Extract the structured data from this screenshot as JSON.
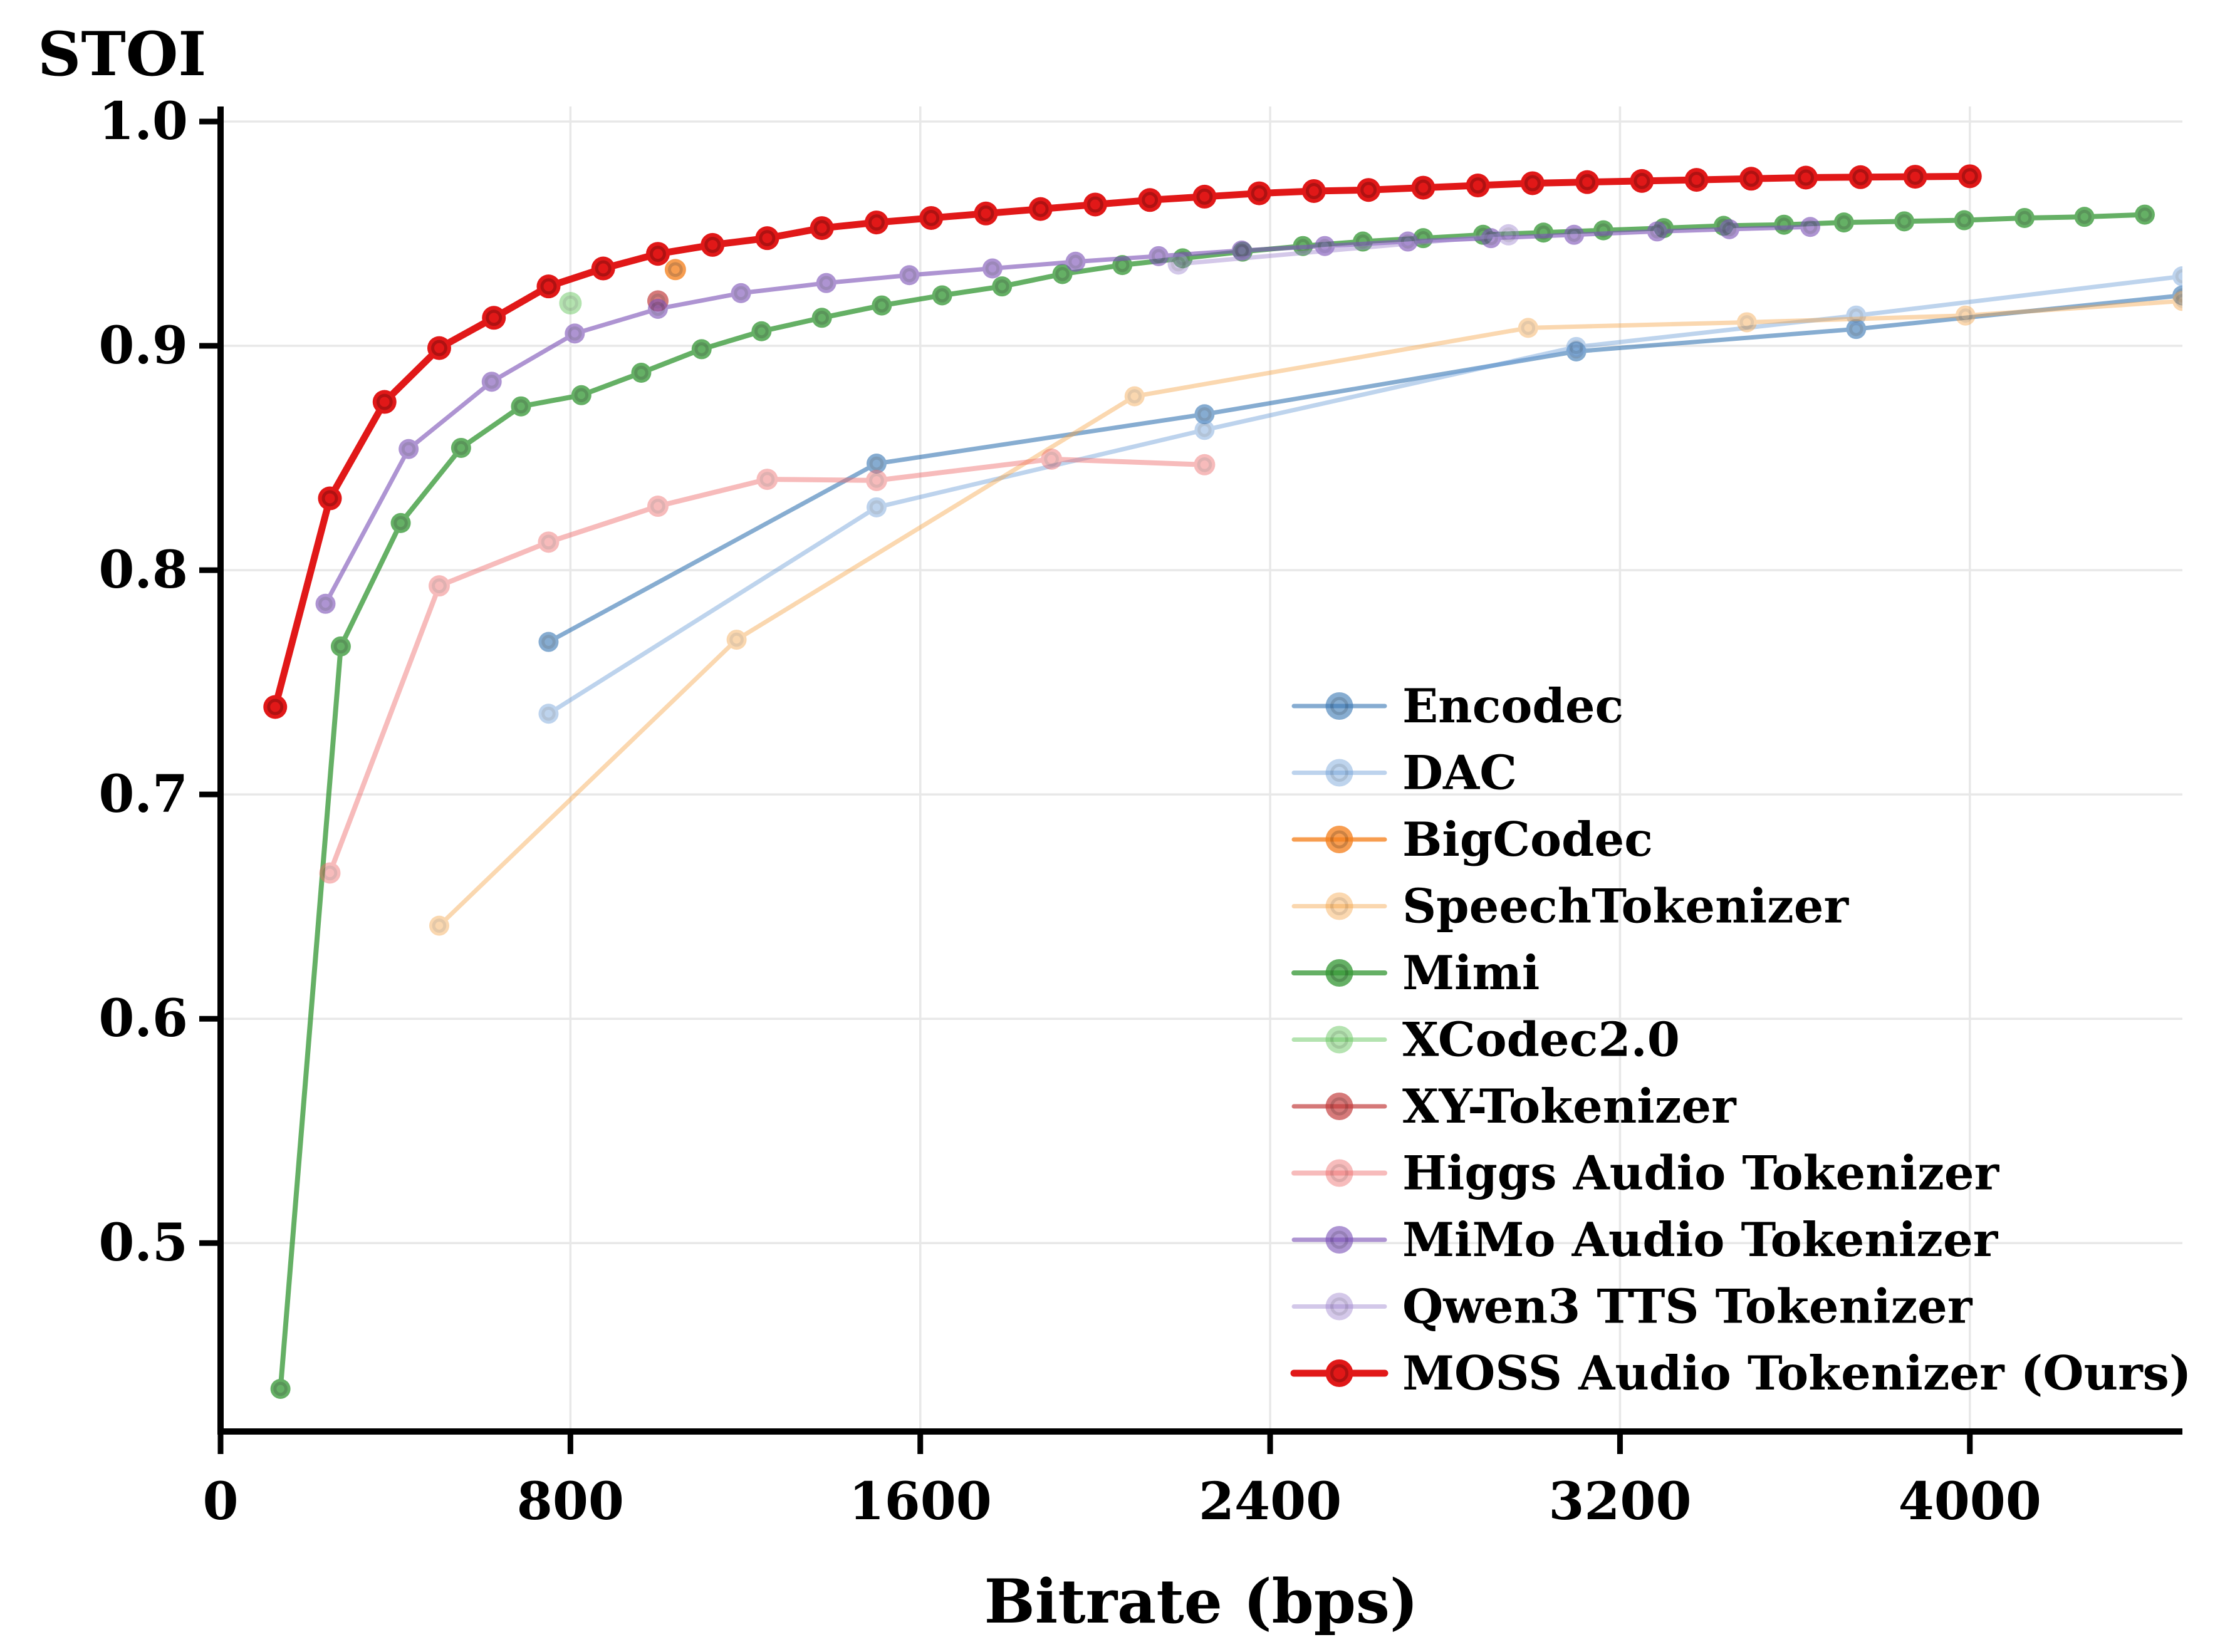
{
  "chart_data": {
    "type": "line",
    "title": "STOI",
    "xlabel": "Bitrate (bps)",
    "ylabel": "STOI",
    "xlim": [
      0,
      4486
    ],
    "ylim": [
      0.416,
      1.0067
    ],
    "xticks": [
      0,
      800,
      1600,
      2400,
      3200,
      4000
    ],
    "yticks": [
      0.5,
      0.6,
      0.7,
      0.8,
      0.9,
      1.0
    ],
    "grid": true,
    "grid_color": "#e8e8e8",
    "legend_position": "center-right",
    "series": [
      {
        "name": "Encodec",
        "color": "#3d7ab5",
        "opacity": 0.62,
        "line_width": 7,
        "marker_size": 16,
        "points": [
          [
            750,
            0.768
          ],
          [
            1500,
            0.8475
          ],
          [
            2250,
            0.8695
          ],
          [
            3100,
            0.8975
          ],
          [
            3740,
            0.9075
          ],
          [
            4486,
            0.9225
          ]
        ]
      },
      {
        "name": "DAC",
        "color": "#6f9fd8",
        "opacity": 0.45,
        "line_width": 7,
        "marker_size": 16,
        "points": [
          [
            750,
            0.736
          ],
          [
            1500,
            0.828
          ],
          [
            2250,
            0.8625
          ],
          [
            3100,
            0.8995
          ],
          [
            3740,
            0.9135
          ],
          [
            4486,
            0.931
          ]
        ]
      },
      {
        "name": "BigCodec",
        "color": "#f58220",
        "opacity": 0.78,
        "line_width": 7,
        "marker_size": 17,
        "points": [
          [
            1040,
            0.934
          ]
        ]
      },
      {
        "name": "SpeechTokenizer",
        "color": "#f5a142",
        "opacity": 0.42,
        "line_width": 7,
        "marker_size": 16,
        "points": [
          [
            500,
            0.6415
          ],
          [
            1180,
            0.769
          ],
          [
            2090,
            0.8775
          ],
          [
            2990,
            0.908
          ],
          [
            3490,
            0.9105
          ],
          [
            3990,
            0.9135
          ],
          [
            4486,
            0.92
          ]
        ]
      },
      {
        "name": "Mimi",
        "color": "#3a9a3a",
        "opacity": 0.78,
        "line_width": 8,
        "marker_size": 16,
        "points": [
          [
            137,
            0.435
          ],
          [
            275,
            0.766
          ],
          [
            412,
            0.821
          ],
          [
            550,
            0.8545
          ],
          [
            687,
            0.873
          ],
          [
            825,
            0.878
          ],
          [
            962,
            0.888
          ],
          [
            1100,
            0.8985
          ],
          [
            1237,
            0.9065
          ],
          [
            1375,
            0.9125
          ],
          [
            1512,
            0.918
          ],
          [
            1650,
            0.9225
          ],
          [
            1787,
            0.9265
          ],
          [
            1925,
            0.932
          ],
          [
            2062,
            0.936
          ],
          [
            2200,
            0.939
          ],
          [
            2337,
            0.942
          ],
          [
            2475,
            0.9445
          ],
          [
            2612,
            0.9465
          ],
          [
            2750,
            0.948
          ],
          [
            2887,
            0.9495
          ],
          [
            3025,
            0.9505
          ],
          [
            3162,
            0.9515
          ],
          [
            3300,
            0.9525
          ],
          [
            3437,
            0.9535
          ],
          [
            3575,
            0.954
          ],
          [
            3712,
            0.955
          ],
          [
            3850,
            0.9555
          ],
          [
            3987,
            0.956
          ],
          [
            4125,
            0.957
          ],
          [
            4262,
            0.9575
          ],
          [
            4400,
            0.9585
          ]
        ]
      },
      {
        "name": "XCodec2.0",
        "color": "#6cc863",
        "opacity": 0.5,
        "line_width": 7,
        "marker_size": 18,
        "points": [
          [
            800,
            0.919
          ]
        ]
      },
      {
        "name": "XY-Tokenizer",
        "color": "#c23b3b",
        "opacity": 0.68,
        "line_width": 7,
        "marker_size": 17,
        "points": [
          [
            1000,
            0.92
          ]
        ]
      },
      {
        "name": "Higgs Audio Tokenizer",
        "color": "#ee6b6b",
        "opacity": 0.45,
        "line_width": 8,
        "marker_size": 17,
        "points": [
          [
            250,
            0.665
          ],
          [
            500,
            0.793
          ],
          [
            750,
            0.8125
          ],
          [
            1000,
            0.8285
          ],
          [
            1250,
            0.8405
          ],
          [
            1500,
            0.84
          ],
          [
            1900,
            0.8495
          ],
          [
            2250,
            0.847
          ]
        ]
      },
      {
        "name": "MiMo Audio Tokenizer",
        "color": "#7d54b8",
        "opacity": 0.62,
        "line_width": 7,
        "marker_size": 16,
        "points": [
          [
            240,
            0.785
          ],
          [
            430,
            0.854
          ],
          [
            620,
            0.884
          ],
          [
            810,
            0.9055
          ],
          [
            1000,
            0.9165
          ],
          [
            1190,
            0.9235
          ],
          [
            1385,
            0.928
          ],
          [
            1575,
            0.9315
          ],
          [
            1765,
            0.9345
          ],
          [
            1955,
            0.9375
          ],
          [
            2145,
            0.94
          ],
          [
            2335,
            0.9425
          ],
          [
            2525,
            0.9445
          ],
          [
            2715,
            0.9465
          ],
          [
            2905,
            0.948
          ],
          [
            3095,
            0.9495
          ],
          [
            3285,
            0.951
          ],
          [
            3450,
            0.952
          ],
          [
            3635,
            0.953
          ]
        ]
      },
      {
        "name": "Qwen3 TTS Tokenizer",
        "color": "#9f86cf",
        "opacity": 0.45,
        "line_width": 7,
        "marker_size": 17,
        "points": [
          [
            2190,
            0.9365
          ],
          [
            2945,
            0.9495
          ]
        ]
      },
      {
        "name": "MOSS Audio Tokenizer (Ours)",
        "color": "#e11818",
        "opacity": 1.0,
        "line_width": 11,
        "marker_size": 19,
        "points": [
          [
            125,
            0.739
          ],
          [
            250,
            0.832
          ],
          [
            375,
            0.875
          ],
          [
            500,
            0.899
          ],
          [
            625,
            0.9125
          ],
          [
            750,
            0.9265
          ],
          [
            875,
            0.9345
          ],
          [
            1000,
            0.941
          ],
          [
            1125,
            0.945
          ],
          [
            1250,
            0.948
          ],
          [
            1375,
            0.9525
          ],
          [
            1500,
            0.955
          ],
          [
            1625,
            0.957
          ],
          [
            1750,
            0.959
          ],
          [
            1875,
            0.961
          ],
          [
            2000,
            0.963
          ],
          [
            2125,
            0.965
          ],
          [
            2250,
            0.9665
          ],
          [
            2375,
            0.968
          ],
          [
            2500,
            0.969
          ],
          [
            2625,
            0.9695
          ],
          [
            2750,
            0.9705
          ],
          [
            2875,
            0.9715
          ],
          [
            3000,
            0.9725
          ],
          [
            3125,
            0.973
          ],
          [
            3250,
            0.9735
          ],
          [
            3375,
            0.974
          ],
          [
            3500,
            0.9745
          ],
          [
            3625,
            0.975
          ],
          [
            3750,
            0.9752
          ],
          [
            3875,
            0.9754
          ],
          [
            4000,
            0.9756
          ]
        ]
      }
    ]
  }
}
